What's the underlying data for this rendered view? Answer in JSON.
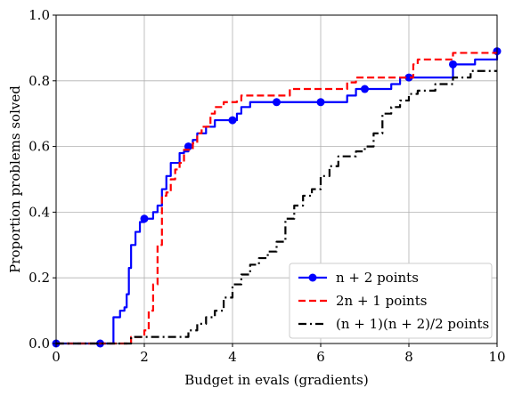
{
  "chart_data": {
    "type": "line",
    "xlabel": "Budget in evals (gradients)",
    "ylabel": "Proportion problems solved",
    "xlim": [
      0,
      10
    ],
    "ylim": [
      0,
      1
    ],
    "xticks": [
      0,
      2,
      4,
      6,
      8,
      10
    ],
    "yticks": [
      0.0,
      0.2,
      0.4,
      0.6,
      0.8,
      1.0
    ],
    "xtick_labels": [
      "0",
      "2",
      "4",
      "6",
      "8",
      "10"
    ],
    "ytick_labels": [
      "0.0",
      "0.2",
      "0.4",
      "0.6",
      "0.8",
      "1.0"
    ],
    "grid": true,
    "legend_position": "lower-right",
    "series": [
      {
        "name": "n + 2 points",
        "color": "#0000ff",
        "style": "solid",
        "marker": "circle",
        "marker_x": [
          0,
          1,
          2,
          3,
          4,
          5,
          6,
          7,
          8,
          9,
          10
        ],
        "x": [
          0,
          1.0,
          1.15,
          1.3,
          1.45,
          1.55,
          1.6,
          1.65,
          1.7,
          1.8,
          1.9,
          2.0,
          2.2,
          2.3,
          2.4,
          2.5,
          2.6,
          2.8,
          2.9,
          3.0,
          3.1,
          3.2,
          3.4,
          3.6,
          4.0,
          4.1,
          4.2,
          4.4,
          5.0,
          6.0,
          6.6,
          6.8,
          7.0,
          7.6,
          7.8,
          8.0,
          8.6,
          8.8,
          9.0,
          9.3,
          9.5,
          9.8,
          10.0
        ],
        "y": [
          0,
          0,
          0,
          0.08,
          0.1,
          0.11,
          0.15,
          0.23,
          0.3,
          0.34,
          0.37,
          0.38,
          0.4,
          0.42,
          0.47,
          0.51,
          0.55,
          0.58,
          0.585,
          0.6,
          0.62,
          0.64,
          0.66,
          0.68,
          0.68,
          0.7,
          0.72,
          0.735,
          0.735,
          0.735,
          0.755,
          0.775,
          0.775,
          0.79,
          0.81,
          0.81,
          0.81,
          0.81,
          0.85,
          0.85,
          0.865,
          0.865,
          0.89
        ]
      },
      {
        "name": "2n + 1 points",
        "color": "#ff0000",
        "style": "dashed",
        "x": [
          0,
          1.65,
          1.7,
          2.0,
          2.1,
          2.2,
          2.3,
          2.4,
          2.5,
          2.6,
          2.7,
          2.8,
          2.9,
          3.1,
          3.2,
          3.3,
          3.5,
          3.6,
          3.8,
          4.0,
          4.1,
          4.2,
          4.4,
          5.0,
          5.3,
          6.0,
          6.6,
          6.8,
          7.0,
          8.0,
          8.1,
          8.2,
          8.6,
          9.0,
          9.3,
          10.0
        ],
        "y": [
          0,
          0,
          0.02,
          0.04,
          0.1,
          0.18,
          0.3,
          0.45,
          0.46,
          0.5,
          0.53,
          0.55,
          0.59,
          0.61,
          0.64,
          0.66,
          0.7,
          0.72,
          0.735,
          0.735,
          0.74,
          0.755,
          0.755,
          0.755,
          0.775,
          0.775,
          0.795,
          0.81,
          0.81,
          0.81,
          0.85,
          0.865,
          0.865,
          0.885,
          0.885,
          0.885
        ]
      },
      {
        "name": "(n + 1)(n + 2)/2 points",
        "color": "#000000",
        "style": "dashdot",
        "x": [
          0,
          1.6,
          1.7,
          2.0,
          2.2,
          2.4,
          2.8,
          3.0,
          3.2,
          3.4,
          3.6,
          3.8,
          4.0,
          4.2,
          4.4,
          4.6,
          4.8,
          5.0,
          5.2,
          5.4,
          5.6,
          5.8,
          6.0,
          6.2,
          6.4,
          6.8,
          7.0,
          7.2,
          7.4,
          7.6,
          7.8,
          8.0,
          8.2,
          8.6,
          9.0,
          9.2,
          9.4,
          10.0
        ],
        "y": [
          0,
          0,
          0.02,
          0.02,
          0.02,
          0.02,
          0.02,
          0.04,
          0.06,
          0.08,
          0.1,
          0.14,
          0.18,
          0.21,
          0.24,
          0.26,
          0.28,
          0.31,
          0.38,
          0.42,
          0.45,
          0.47,
          0.51,
          0.54,
          0.57,
          0.585,
          0.6,
          0.64,
          0.7,
          0.72,
          0.74,
          0.76,
          0.77,
          0.79,
          0.81,
          0.81,
          0.83,
          0.83
        ]
      }
    ]
  }
}
